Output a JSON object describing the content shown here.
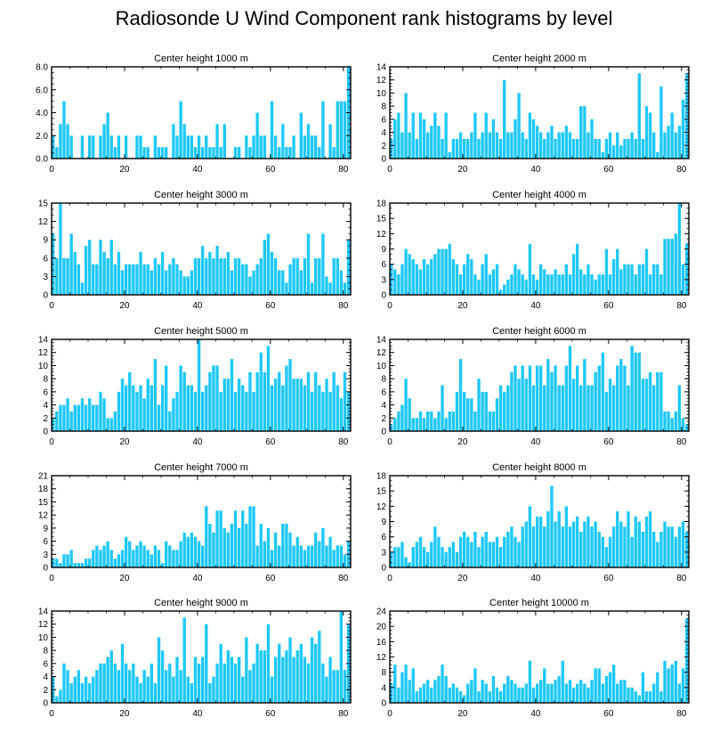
{
  "title": "Radiosonde U Wind Component rank histograms by level",
  "colors": {
    "bar": "#1ec8fa",
    "axis": "#000000",
    "background": "#ffffff"
  },
  "chart_data": [
    {
      "type": "bar",
      "title": "Center height 1000 m",
      "xlim": [
        0,
        82
      ],
      "xticks": [
        0,
        20,
        40,
        60,
        80
      ],
      "ylim": [
        0,
        8
      ],
      "yticks": [
        0,
        2,
        4,
        6,
        8
      ],
      "ytick_labels": [
        "0.0",
        "2.0",
        "4.0",
        "6.0",
        "8.0"
      ],
      "values": [
        2,
        1,
        3,
        5,
        3,
        2,
        0,
        0,
        2,
        0,
        2,
        2,
        0,
        2,
        3,
        4,
        2,
        1,
        2,
        0,
        2,
        0,
        0,
        2,
        2,
        1,
        1,
        0,
        2,
        1,
        1,
        1,
        0,
        3,
        2,
        5,
        3,
        2,
        2,
        1,
        2,
        1,
        2,
        1,
        1,
        3,
        1,
        3,
        0,
        0,
        1,
        1,
        0,
        2,
        1,
        2,
        4,
        2,
        2,
        0,
        5,
        2,
        1,
        3,
        1,
        1,
        2,
        0,
        4,
        2,
        3,
        2,
        2,
        1,
        5,
        0,
        3,
        1,
        5,
        5,
        5,
        8
      ]
    },
    {
      "type": "bar",
      "title": "Center height 2000 m",
      "xlim": [
        0,
        82
      ],
      "xticks": [
        0,
        20,
        40,
        60,
        80
      ],
      "ylim": [
        0,
        14
      ],
      "yticks": [
        0,
        2,
        4,
        6,
        8,
        10,
        12,
        14
      ],
      "ytick_labels": [
        "0",
        "2",
        "4",
        "6",
        "8",
        "10",
        "12",
        "14"
      ],
      "values": [
        3,
        6,
        7,
        4,
        10,
        4,
        7,
        3,
        7,
        6,
        4,
        5,
        7,
        5,
        3,
        7,
        1,
        3,
        3,
        4,
        3,
        3,
        4,
        7,
        3,
        4,
        7,
        4,
        6,
        4,
        3,
        12,
        4,
        4,
        6,
        10,
        4,
        3,
        7,
        6,
        5,
        4,
        3,
        4,
        5,
        3,
        4,
        4,
        5,
        4,
        3,
        3,
        8,
        8,
        4,
        6,
        3,
        3,
        1,
        3,
        4,
        2,
        4,
        2,
        3,
        3,
        4,
        3,
        13,
        3,
        8,
        7,
        4,
        1,
        11,
        4,
        5,
        7,
        4,
        5,
        9,
        13
      ]
    },
    {
      "type": "bar",
      "title": "Center height 3000 m",
      "xlim": [
        0,
        82
      ],
      "xticks": [
        0,
        20,
        40,
        60,
        80
      ],
      "ylim": [
        0,
        15
      ],
      "yticks": [
        0,
        3,
        6,
        9,
        12,
        15
      ],
      "ytick_labels": [
        "0",
        "3",
        "6",
        "9",
        "12",
        "15"
      ],
      "values": [
        10,
        6,
        15,
        6,
        6,
        10,
        7,
        5,
        2,
        8,
        9,
        5,
        5,
        9,
        7,
        6,
        9,
        5,
        7,
        4,
        5,
        5,
        5,
        5,
        7,
        5,
        5,
        4,
        6,
        5,
        7,
        4,
        5,
        6,
        5,
        4,
        3,
        3,
        4,
        6,
        6,
        8,
        6,
        7,
        6,
        8,
        6,
        6,
        7,
        4,
        6,
        6,
        5,
        5,
        3,
        4,
        5,
        6,
        9,
        10,
        7,
        6,
        4,
        4,
        2,
        5,
        6,
        6,
        4,
        6,
        10,
        2,
        6,
        6,
        10,
        3,
        2,
        6,
        6,
        4,
        2,
        9
      ]
    },
    {
      "type": "bar",
      "title": "Center height 4000 m",
      "xlim": [
        0,
        82
      ],
      "xticks": [
        0,
        20,
        40,
        60,
        80
      ],
      "ylim": [
        0,
        18
      ],
      "yticks": [
        0,
        3,
        6,
        9,
        12,
        15,
        18
      ],
      "ytick_labels": [
        "0",
        "3",
        "6",
        "9",
        "12",
        "15",
        "18"
      ],
      "values": [
        6,
        5,
        4,
        6,
        9,
        8,
        7,
        6,
        5,
        7,
        6,
        7,
        8,
        9,
        9,
        9,
        10,
        7,
        6,
        4,
        6,
        8,
        7,
        4,
        3,
        6,
        8,
        4,
        5,
        6,
        1,
        2,
        3,
        4,
        6,
        5,
        4,
        3,
        10,
        4,
        3,
        6,
        5,
        4,
        4,
        5,
        4,
        4,
        6,
        4,
        8,
        10,
        5,
        4,
        6,
        4,
        3,
        4,
        4,
        9,
        4,
        7,
        9,
        5,
        6,
        6,
        6,
        4,
        6,
        6,
        9,
        4,
        6,
        6,
        4,
        11,
        11,
        11,
        12,
        18,
        6,
        10
      ]
    },
    {
      "type": "bar",
      "title": "Center height 5000 m",
      "xlim": [
        0,
        82
      ],
      "xticks": [
        0,
        20,
        40,
        60,
        80
      ],
      "ylim": [
        0,
        14
      ],
      "yticks": [
        0,
        2,
        4,
        6,
        8,
        10,
        12,
        14
      ],
      "ytick_labels": [
        "0",
        "2",
        "4",
        "6",
        "8",
        "10",
        "12",
        "14"
      ],
      "values": [
        2,
        3,
        4,
        4,
        5,
        3,
        4,
        4,
        5,
        4,
        5,
        4,
        4,
        6,
        5,
        2,
        2,
        3,
        6,
        8,
        7,
        9,
        7,
        6,
        7,
        5,
        8,
        7,
        11,
        4,
        7,
        10,
        3,
        5,
        6,
        10,
        9,
        7,
        7,
        6,
        14,
        6,
        7,
        9,
        10,
        10,
        6,
        8,
        8,
        11,
        6,
        8,
        7,
        6,
        9,
        6,
        9,
        12,
        9,
        13,
        7,
        8,
        9,
        7,
        10,
        11,
        8,
        8,
        8,
        7,
        9,
        6,
        9,
        7,
        6,
        8,
        6,
        9,
        7,
        5,
        9,
        6
      ]
    },
    {
      "type": "bar",
      "title": "Center height 6000 m",
      "xlim": [
        0,
        82
      ],
      "xticks": [
        0,
        20,
        40,
        60,
        80
      ],
      "ylim": [
        0,
        14
      ],
      "yticks": [
        0,
        2,
        4,
        6,
        8,
        10,
        12,
        14
      ],
      "ytick_labels": [
        "0",
        "2",
        "4",
        "6",
        "8",
        "10",
        "12",
        "14"
      ],
      "values": [
        1,
        2,
        3,
        4,
        8,
        5,
        2,
        2,
        3,
        2,
        3,
        3,
        2,
        3,
        7,
        2,
        3,
        3,
        6,
        11,
        6,
        5,
        5,
        3,
        8,
        6,
        6,
        3,
        3,
        5,
        7,
        6,
        7,
        9,
        10,
        8,
        10,
        8,
        10,
        7,
        10,
        10,
        7,
        11,
        9,
        10,
        7,
        7,
        10,
        13,
        8,
        10,
        7,
        11,
        7,
        7,
        9,
        10,
        12,
        6,
        8,
        7,
        10,
        11,
        10,
        7,
        13,
        12,
        12,
        8,
        8,
        9,
        7,
        9,
        9,
        3,
        3,
        2,
        3,
        7,
        2,
        1
      ]
    },
    {
      "type": "bar",
      "title": "Center height 7000 m",
      "xlim": [
        0,
        82
      ],
      "xticks": [
        0,
        20,
        40,
        60,
        80
      ],
      "ylim": [
        0,
        21
      ],
      "yticks": [
        0,
        3,
        6,
        9,
        12,
        15,
        18,
        21
      ],
      "ytick_labels": [
        "0",
        "3",
        "6",
        "9",
        "12",
        "15",
        "18",
        "21"
      ],
      "values": [
        2,
        2,
        1,
        3,
        3,
        4,
        1,
        1,
        1,
        2,
        2,
        4,
        5,
        4,
        5,
        6,
        4,
        2,
        3,
        4,
        7,
        6,
        4,
        5,
        6,
        5,
        4,
        3,
        5,
        4,
        1,
        6,
        5,
        4,
        4,
        6,
        8,
        7,
        8,
        7,
        6,
        5,
        14,
        10,
        8,
        13,
        13,
        9,
        8,
        10,
        13,
        9,
        13,
        10,
        14,
        14,
        5,
        10,
        6,
        9,
        4,
        8,
        5,
        10,
        10,
        8,
        5,
        7,
        5,
        4,
        5,
        5,
        8,
        6,
        9,
        5,
        7,
        4,
        5,
        5,
        3,
        6
      ]
    },
    {
      "type": "bar",
      "title": "Center height 8000 m",
      "xlim": [
        0,
        82
      ],
      "xticks": [
        0,
        20,
        40,
        60,
        80
      ],
      "ylim": [
        0,
        18
      ],
      "yticks": [
        0,
        3,
        6,
        9,
        12,
        15,
        18
      ],
      "ytick_labels": [
        "0",
        "3",
        "6",
        "9",
        "12",
        "15",
        "18"
      ],
      "values": [
        3,
        4,
        4,
        5,
        2,
        1,
        4,
        5,
        6,
        4,
        3,
        5,
        8,
        6,
        4,
        3,
        4,
        5,
        3,
        6,
        7,
        6,
        5,
        7,
        4,
        6,
        7,
        5,
        5,
        6,
        4,
        6,
        7,
        8,
        6,
        5,
        8,
        9,
        12,
        8,
        10,
        10,
        8,
        11,
        16,
        9,
        11,
        8,
        12,
        8,
        9,
        10,
        7,
        9,
        10,
        8,
        9,
        7,
        6,
        4,
        6,
        8,
        11,
        9,
        8,
        11,
        6,
        10,
        9,
        7,
        10,
        11,
        7,
        5,
        7,
        9,
        8,
        8,
        6,
        8,
        9,
        7
      ]
    },
    {
      "type": "bar",
      "title": "Center height 9000 m",
      "xlim": [
        0,
        82
      ],
      "xticks": [
        0,
        20,
        40,
        60,
        80
      ],
      "ylim": [
        0,
        14
      ],
      "yticks": [
        0,
        2,
        4,
        6,
        8,
        10,
        12,
        14
      ],
      "ytick_labels": [
        "0",
        "2",
        "4",
        "6",
        "8",
        "10",
        "12",
        "14"
      ],
      "values": [
        4,
        1,
        2,
        6,
        5,
        3,
        4,
        5,
        3,
        4,
        3,
        4,
        5,
        6,
        6,
        7,
        8,
        6,
        5,
        9,
        6,
        5,
        6,
        4,
        3,
        5,
        4,
        6,
        3,
        10,
        8,
        5,
        6,
        4,
        7,
        5,
        13,
        4,
        3,
        7,
        6,
        7,
        12,
        3,
        4,
        6,
        9,
        6,
        8,
        7,
        6,
        7,
        4,
        10,
        5,
        6,
        9,
        8,
        8,
        12,
        4,
        7,
        9,
        7,
        8,
        10,
        7,
        8,
        9,
        7,
        6,
        10,
        9,
        11,
        6,
        4,
        7,
        5,
        5,
        14,
        5,
        12
      ]
    },
    {
      "type": "bar",
      "title": "Center height 10000 m",
      "xlim": [
        0,
        82
      ],
      "xticks": [
        0,
        20,
        40,
        60,
        80
      ],
      "ylim": [
        0,
        24
      ],
      "yticks": [
        0,
        4,
        8,
        12,
        16,
        20,
        24
      ],
      "ytick_labels": [
        "0",
        "4",
        "8",
        "12",
        "16",
        "20",
        "24"
      ],
      "values": [
        5,
        10,
        4,
        8,
        10,
        6,
        9,
        3,
        4,
        5,
        6,
        4,
        6,
        7,
        10,
        7,
        4,
        5,
        4,
        3,
        2,
        5,
        6,
        9,
        3,
        6,
        5,
        3,
        7,
        4,
        3,
        5,
        7,
        6,
        5,
        4,
        4,
        5,
        11,
        4,
        5,
        6,
        9,
        5,
        5,
        6,
        7,
        11,
        5,
        6,
        4,
        5,
        6,
        5,
        4,
        6,
        9,
        9,
        5,
        7,
        8,
        10,
        5,
        6,
        6,
        4,
        4,
        3,
        2,
        8,
        3,
        3,
        5,
        8,
        3,
        11,
        9,
        10,
        11,
        5,
        9,
        22
      ]
    }
  ]
}
